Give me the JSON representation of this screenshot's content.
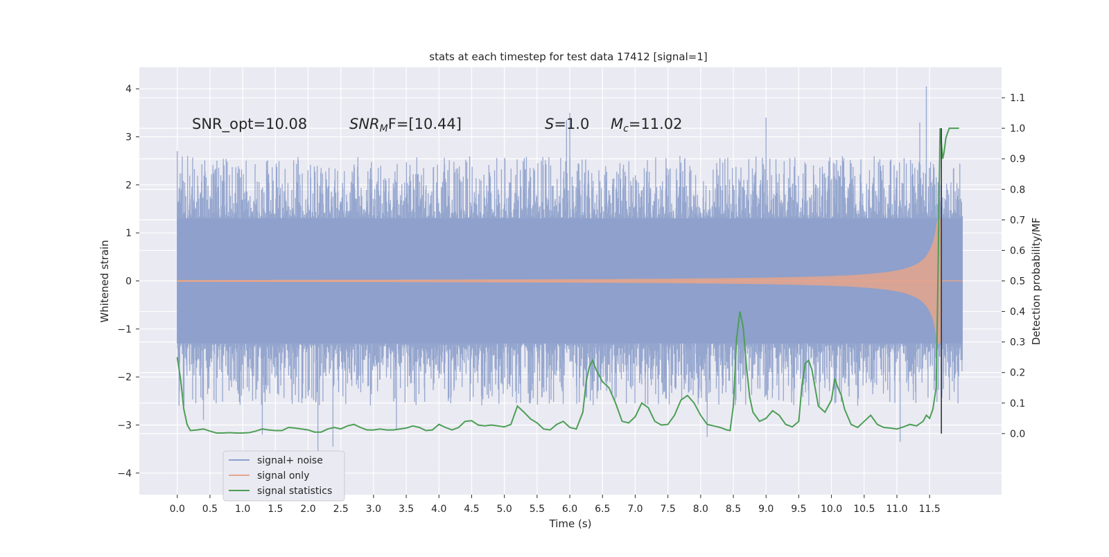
{
  "chart_data": {
    "type": "line",
    "title": "stats at each timestep for test data 17412 [signal=1]",
    "xlabel": "Time (s)",
    "ylabel_left": "Whitened strain",
    "ylabel_right": "Detection probability/MF",
    "xlim": [
      -0.58,
      12.6
    ],
    "ylim_left": [
      -4.45,
      4.45
    ],
    "ylim_right": [
      -0.2,
      1.2
    ],
    "x_ticks": [
      "0.0",
      "0.5",
      "1.0",
      "1.5",
      "2.0",
      "2.5",
      "3.0",
      "3.5",
      "4.0",
      "4.5",
      "5.0",
      "5.5",
      "6.0",
      "6.5",
      "7.0",
      "7.5",
      "8.0",
      "8.5",
      "9.0",
      "9.5",
      "10.0",
      "10.5",
      "11.0",
      "11.5"
    ],
    "y_ticks_left": [
      "4",
      "3",
      "2",
      "1",
      "0",
      "−1",
      "−2",
      "−3",
      "−4"
    ],
    "y_ticks_right": [
      "1.1",
      "1.0",
      "0.9",
      "0.8",
      "0.7",
      "0.6",
      "0.5",
      "0.4",
      "0.3",
      "0.2",
      "0.1",
      "0.0"
    ],
    "grid": true,
    "background": "#eaeaf2",
    "annotations": {
      "snr_opt": "SNR_opt=10.08",
      "snr_mf_main": "SNR",
      "snr_mf_sub": "M",
      "snr_mf_rest": "F=[10.44]",
      "s_main": "S",
      "s_rest": "=1.0",
      "mc_main": "M",
      "mc_sub": "c",
      "mc_rest": "=11.02"
    },
    "legend": {
      "placement": "lower-left",
      "entries": [
        {
          "label": "signal+ noise",
          "color": "#8da0cb"
        },
        {
          "label": "signal only",
          "color": "#e5a58c"
        },
        {
          "label": "signal statistics",
          "color": "#4c9e55"
        }
      ]
    },
    "series": [
      {
        "name": "signal+ noise",
        "axis": "left",
        "kind": "noise-band",
        "x_range": [
          0.0,
          12.0
        ],
        "envelope": 1.3,
        "peak_typical": 2.6,
        "peak_max": 4.05
      },
      {
        "name": "signal only",
        "axis": "left",
        "kind": "chirp",
        "x_range": [
          0.0,
          11.68
        ],
        "amplitude_start": 0.02,
        "amplitude_end": 1.3,
        "merger_time": 11.68
      },
      {
        "name": "signal statistics",
        "axis": "right",
        "kind": "line",
        "x": [
          0.0,
          0.05,
          0.1,
          0.15,
          0.2,
          0.3,
          0.4,
          0.5,
          0.6,
          0.7,
          0.8,
          0.9,
          1.0,
          1.1,
          1.2,
          1.3,
          1.4,
          1.5,
          1.6,
          1.7,
          1.8,
          1.9,
          2.0,
          2.1,
          2.2,
          2.3,
          2.4,
          2.5,
          2.6,
          2.7,
          2.8,
          2.9,
          3.0,
          3.1,
          3.2,
          3.3,
          3.4,
          3.5,
          3.6,
          3.7,
          3.8,
          3.9,
          4.0,
          4.1,
          4.2,
          4.3,
          4.4,
          4.5,
          4.6,
          4.7,
          4.8,
          4.9,
          5.0,
          5.1,
          5.15,
          5.2,
          5.3,
          5.4,
          5.5,
          5.6,
          5.7,
          5.8,
          5.9,
          6.0,
          6.1,
          6.2,
          6.25,
          6.3,
          6.35,
          6.4,
          6.5,
          6.6,
          6.7,
          6.8,
          6.9,
          7.0,
          7.1,
          7.2,
          7.3,
          7.4,
          7.5,
          7.6,
          7.7,
          7.8,
          7.9,
          8.0,
          8.1,
          8.2,
          8.3,
          8.4,
          8.45,
          8.5,
          8.55,
          8.6,
          8.65,
          8.7,
          8.75,
          8.8,
          8.9,
          9.0,
          9.1,
          9.2,
          9.3,
          9.4,
          9.5,
          9.55,
          9.6,
          9.65,
          9.7,
          9.75,
          9.8,
          9.9,
          10.0,
          10.05,
          10.1,
          10.15,
          10.2,
          10.3,
          10.4,
          10.5,
          10.6,
          10.7,
          10.8,
          10.9,
          11.0,
          11.1,
          11.2,
          11.3,
          11.4,
          11.45,
          11.5,
          11.55,
          11.6,
          11.62,
          11.64,
          11.66,
          11.68,
          11.7,
          11.72,
          11.75,
          11.8,
          11.85,
          11.9,
          11.95
        ],
        "values": [
          0.25,
          0.18,
          0.08,
          0.03,
          0.01,
          0.012,
          0.015,
          0.008,
          0.002,
          0.002,
          0.003,
          0.002,
          0.002,
          0.003,
          0.008,
          0.015,
          0.012,
          0.01,
          0.01,
          0.02,
          0.018,
          0.015,
          0.012,
          0.005,
          0.005,
          0.015,
          0.02,
          0.015,
          0.025,
          0.03,
          0.02,
          0.012,
          0.012,
          0.015,
          0.012,
          0.012,
          0.015,
          0.018,
          0.025,
          0.02,
          0.01,
          0.012,
          0.03,
          0.02,
          0.012,
          0.02,
          0.04,
          0.042,
          0.028,
          0.025,
          0.028,
          0.025,
          0.022,
          0.03,
          0.06,
          0.09,
          0.07,
          0.048,
          0.035,
          0.015,
          0.012,
          0.03,
          0.04,
          0.02,
          0.015,
          0.07,
          0.17,
          0.22,
          0.24,
          0.21,
          0.17,
          0.15,
          0.1,
          0.04,
          0.035,
          0.055,
          0.1,
          0.085,
          0.04,
          0.028,
          0.03,
          0.06,
          0.11,
          0.125,
          0.1,
          0.06,
          0.03,
          0.025,
          0.02,
          0.012,
          0.01,
          0.09,
          0.31,
          0.4,
          0.35,
          0.22,
          0.12,
          0.07,
          0.04,
          0.05,
          0.075,
          0.06,
          0.03,
          0.022,
          0.04,
          0.16,
          0.23,
          0.24,
          0.21,
          0.15,
          0.09,
          0.07,
          0.11,
          0.18,
          0.15,
          0.125,
          0.08,
          0.03,
          0.02,
          0.04,
          0.06,
          0.03,
          0.02,
          0.018,
          0.015,
          0.022,
          0.03,
          0.025,
          0.04,
          0.06,
          0.05,
          0.08,
          0.15,
          0.4,
          0.7,
          1.0,
          0.95,
          0.9,
          0.92,
          0.97,
          1.0,
          1.0,
          1.0,
          1.0
        ]
      }
    ],
    "vertical_marker": {
      "x": 11.68,
      "y_range_right": [
        0.0,
        1.0
      ]
    }
  }
}
